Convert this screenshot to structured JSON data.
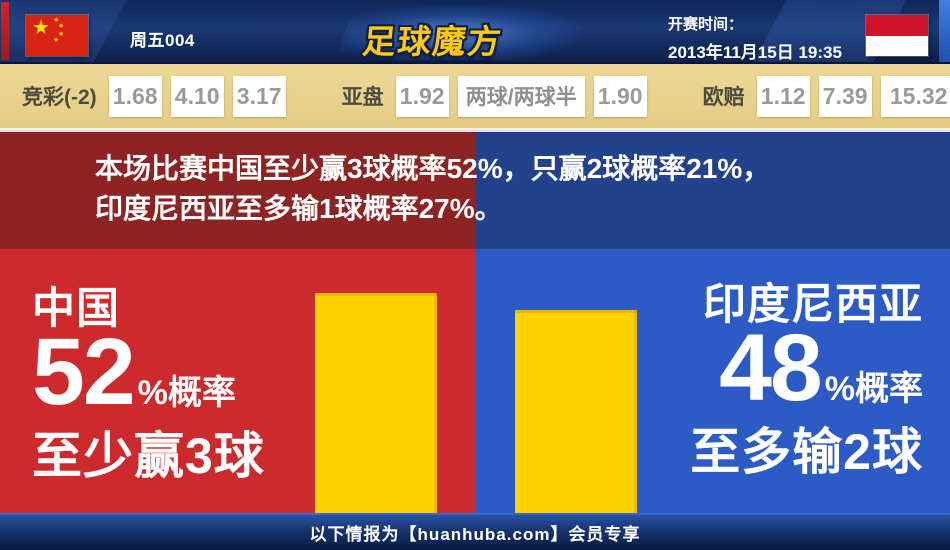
{
  "header": {
    "match_code": "周五004",
    "logo_text": "足球魔方",
    "kickoff_label": "开赛时间：",
    "kickoff_time": "2013年11月15日 19:35",
    "home_flag": "china-flag",
    "away_flag": "indonesia-flag"
  },
  "odds": {
    "jingcai": {
      "label": "竞彩(-2)",
      "values": [
        "1.68",
        "4.10",
        "3.17"
      ]
    },
    "yapan": {
      "label": "亚盘",
      "values": [
        "1.92",
        "两球/两球半",
        "1.90"
      ]
    },
    "oupei": {
      "label": "欧赔",
      "values": [
        "1.12",
        "7.39",
        "15.32"
      ]
    }
  },
  "summary": {
    "line1": "本场比赛中国至少赢3球概率52%，只赢2球概率21%，",
    "line2": "印度尼西亚至多输1球概率27%。"
  },
  "panels": {
    "left": {
      "team": "中国",
      "percent": "52",
      "suffix": "%概率",
      "caption": "至少赢3球",
      "value": 52
    },
    "right": {
      "team": "印度尼西亚",
      "percent": "48",
      "suffix": "%概率",
      "caption": "至多输2球",
      "value": 48
    }
  },
  "chart_data": {
    "type": "bar",
    "categories": [
      "中国",
      "印度尼西亚"
    ],
    "values": [
      52,
      48
    ],
    "value_unit": "%概率",
    "captions": [
      "至少赢3球",
      "至多输2球"
    ],
    "title": "本场比赛中国至少赢3球概率52%，只赢2球概率21%，印度尼西亚至多输1球概率27%。",
    "ylim": [
      0,
      62
    ],
    "bar_color": "#ffd303"
  },
  "footer": {
    "text": "以下情报为【huanhuba.com】会员专享"
  },
  "colors": {
    "header_navy": "#12306a",
    "odds_bar_tan": "#e7cf8c",
    "summary_red": "#8e2323",
    "summary_blue": "#24418b",
    "panel_red": "#cd2a2e",
    "panel_blue": "#2d5bc5",
    "bar_yellow": "#ffd303",
    "logo_gold": "#ffc90a",
    "footer_navy": "#16336e"
  }
}
